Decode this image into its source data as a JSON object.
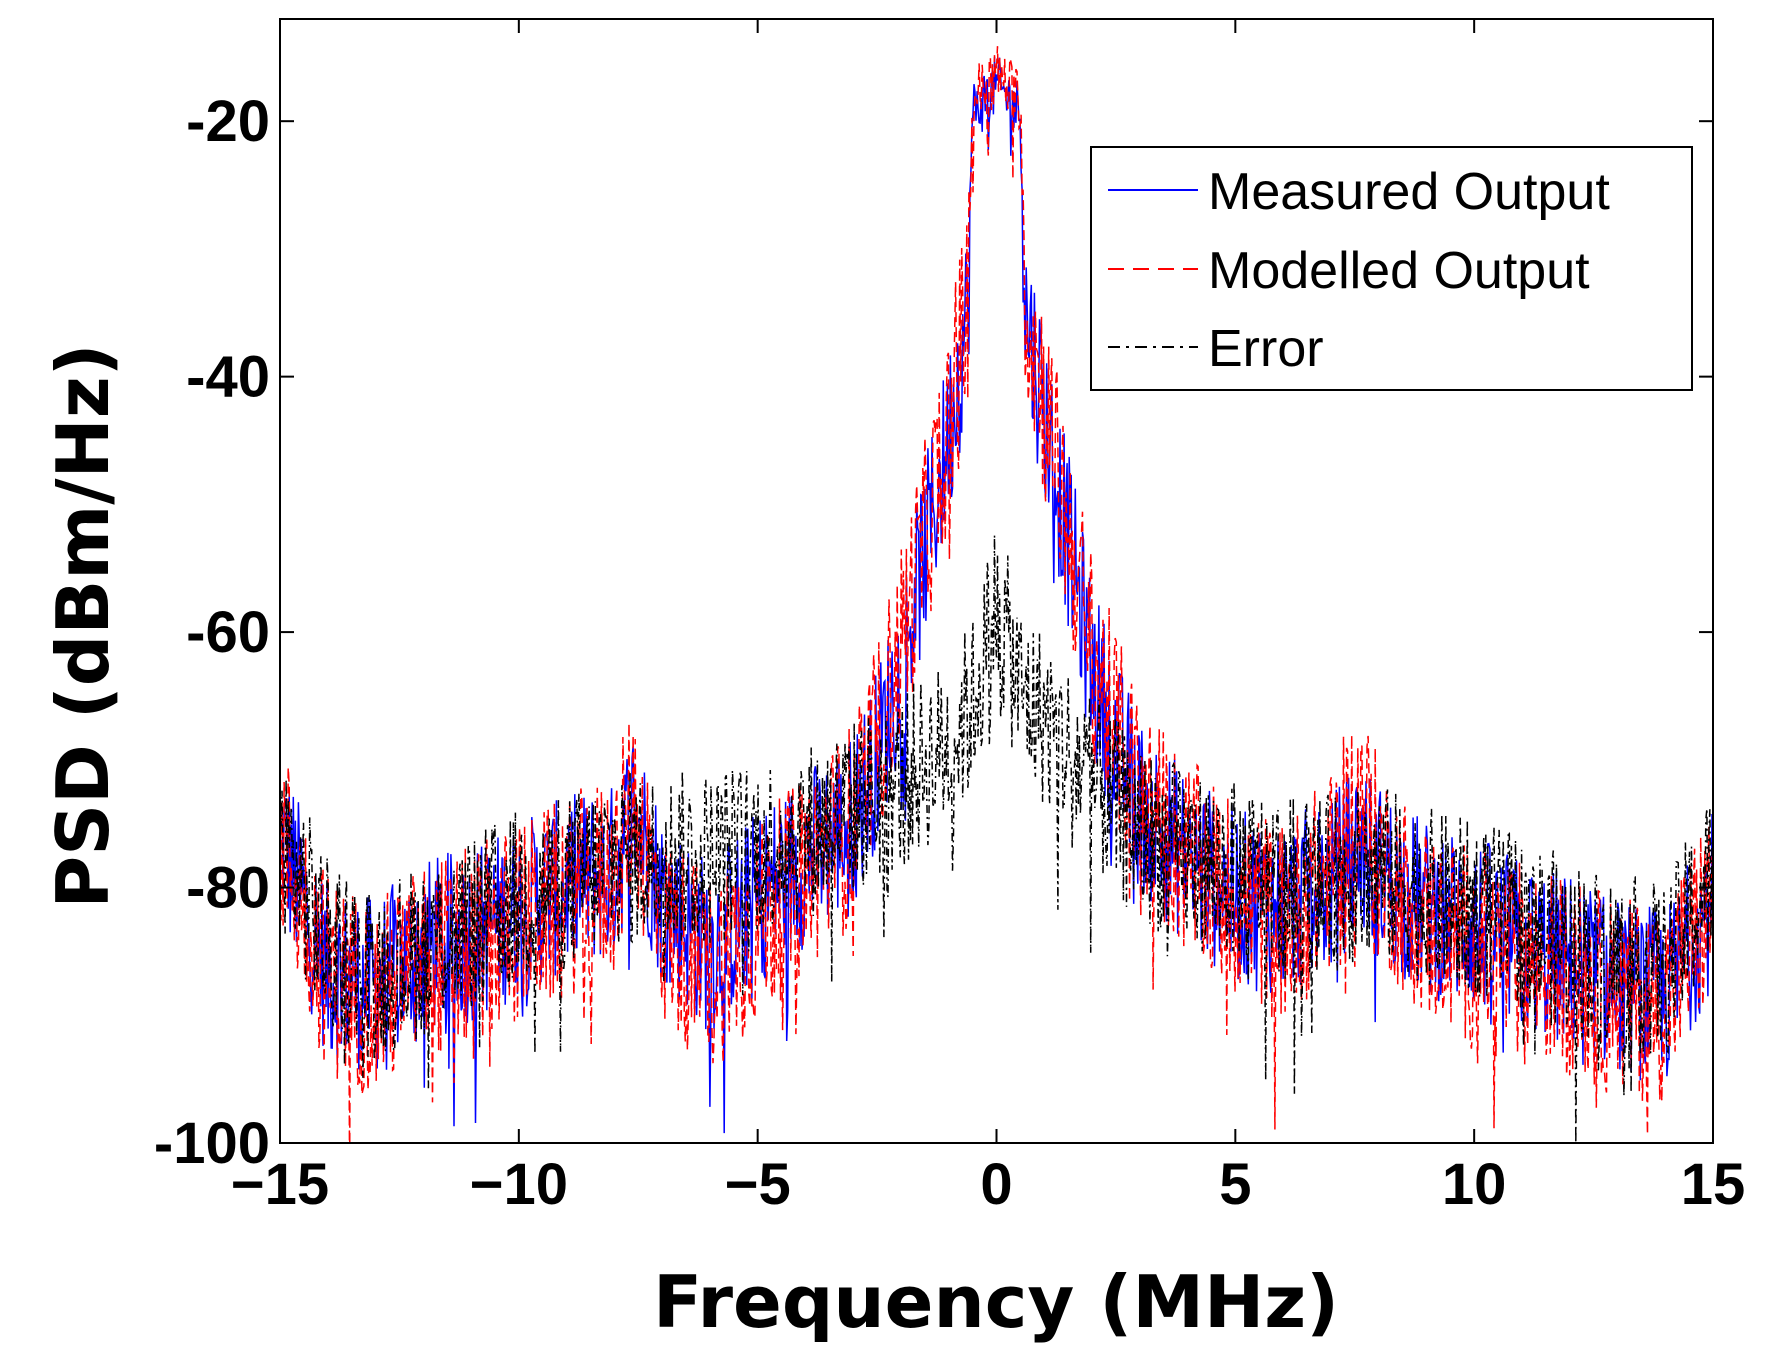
{
  "chart_data": {
    "type": "line",
    "title": "",
    "xlabel": "Frequency (MHz)",
    "ylabel": "PSD (dBm/Hz)",
    "xlim": [
      -15,
      15
    ],
    "ylim": [
      -100,
      -12
    ],
    "xticks": [
      -15,
      -10,
      -5,
      0,
      5,
      10,
      15
    ],
    "xtick_labels": [
      "−15",
      "−10",
      "−5",
      "0",
      "5",
      "10",
      "15"
    ],
    "yticks": [
      -100,
      -80,
      -60,
      -40,
      -20
    ],
    "ytick_labels": [
      "-100",
      "-80",
      "-60",
      "-40",
      "-20"
    ],
    "grid": false,
    "legend_position": "top-right",
    "series": [
      {
        "name": "Measured Output",
        "color": "#0000ff",
        "style": "solid",
        "x": [
          -15,
          -14,
          -13,
          -12,
          -11,
          -10,
          -9,
          -8,
          -7.6,
          -7,
          -6,
          -5,
          -4,
          -3,
          -2.5,
          -2,
          -1.5,
          -1,
          -0.6,
          -0.5,
          0,
          0.5,
          0.6,
          1,
          1.5,
          2,
          2.5,
          3,
          4,
          5,
          6,
          7,
          7.6,
          8,
          9,
          10,
          11,
          12,
          13,
          14,
          15
        ],
        "values": [
          -75,
          -86,
          -87,
          -84,
          -83,
          -81,
          -79,
          -78,
          -73,
          -80,
          -84,
          -80,
          -77,
          -74,
          -69,
          -62,
          -53,
          -44,
          -34,
          -19,
          -17,
          -19,
          -34,
          -42,
          -52,
          -62,
          -68,
          -73,
          -77,
          -80,
          -81,
          -79,
          -76,
          -78,
          -81,
          -82,
          -84,
          -85,
          -87,
          -88,
          -80
        ]
      },
      {
        "name": "Modelled Output",
        "color": "#ff0000",
        "style": "dashed",
        "x": [
          -15,
          -14,
          -13,
          -12,
          -11,
          -10,
          -9,
          -8,
          -7.6,
          -7,
          -6,
          -5,
          -4,
          -3,
          -2.5,
          -2,
          -1.5,
          -1,
          -0.6,
          -0.5,
          0,
          0.5,
          0.6,
          1,
          1.5,
          2,
          2.5,
          3,
          4,
          5,
          6,
          7,
          7.6,
          8,
          9,
          10,
          11,
          12,
          13,
          14,
          15
        ],
        "values": [
          -75,
          -86,
          -88,
          -85,
          -84,
          -82,
          -80,
          -78,
          -72,
          -82,
          -86,
          -82,
          -78,
          -74,
          -68,
          -60,
          -52,
          -43,
          -33,
          -18,
          -16,
          -18,
          -33,
          -41,
          -51,
          -61,
          -67,
          -72,
          -77,
          -80,
          -82,
          -78,
          -72,
          -77,
          -82,
          -84,
          -85,
          -86,
          -88,
          -88,
          -80
        ]
      },
      {
        "name": "Error",
        "color": "#000000",
        "style": "dashdot",
        "x": [
          -15,
          -14,
          -13,
          -12,
          -11,
          -10,
          -9,
          -8,
          -7,
          -6,
          -5,
          -4,
          -3,
          -2,
          -1,
          -0.5,
          0,
          0.5,
          1,
          2,
          3,
          4,
          5,
          6,
          7,
          8,
          9,
          10,
          11,
          12,
          13,
          14,
          15
        ],
        "values": [
          -75,
          -84,
          -86,
          -84,
          -82,
          -80,
          -79,
          -77,
          -77,
          -77,
          -76,
          -75,
          -73,
          -71,
          -68,
          -65,
          -57,
          -64,
          -66,
          -71,
          -75,
          -77,
          -78,
          -79,
          -79,
          -78,
          -80,
          -81,
          -82,
          -84,
          -85,
          -86,
          -78
        ]
      }
    ]
  }
}
